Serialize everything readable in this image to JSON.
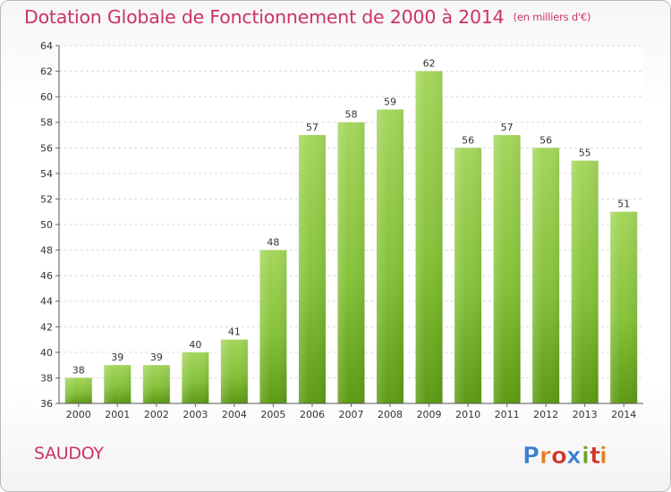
{
  "title": "Dotation Globale de Fonctionnement de 2000 à 2014",
  "unit_note": "(en milliers d'€)",
  "city": "SAUDOY",
  "logo": {
    "text": "Proxiti",
    "colors": [
      "#3b7fd0",
      "#e87d1e",
      "#d0342c",
      "#3b7fd0",
      "#6aa428",
      "#d0342c",
      "#e87d1e"
    ]
  },
  "chart_data": {
    "type": "bar",
    "categories": [
      "2000",
      "2001",
      "2002",
      "2003",
      "2004",
      "2005",
      "2006",
      "2007",
      "2008",
      "2009",
      "2010",
      "2011",
      "2012",
      "2013",
      "2014"
    ],
    "values": [
      38,
      39,
      39,
      40,
      41,
      48,
      57,
      58,
      59,
      62,
      56,
      57,
      56,
      55,
      51
    ],
    "ylim": [
      36,
      64
    ],
    "yticks": [
      36,
      38,
      40,
      42,
      44,
      46,
      48,
      50,
      52,
      54,
      56,
      58,
      60,
      62,
      64
    ],
    "grid": true,
    "bar_color": "#7fbe2f"
  }
}
